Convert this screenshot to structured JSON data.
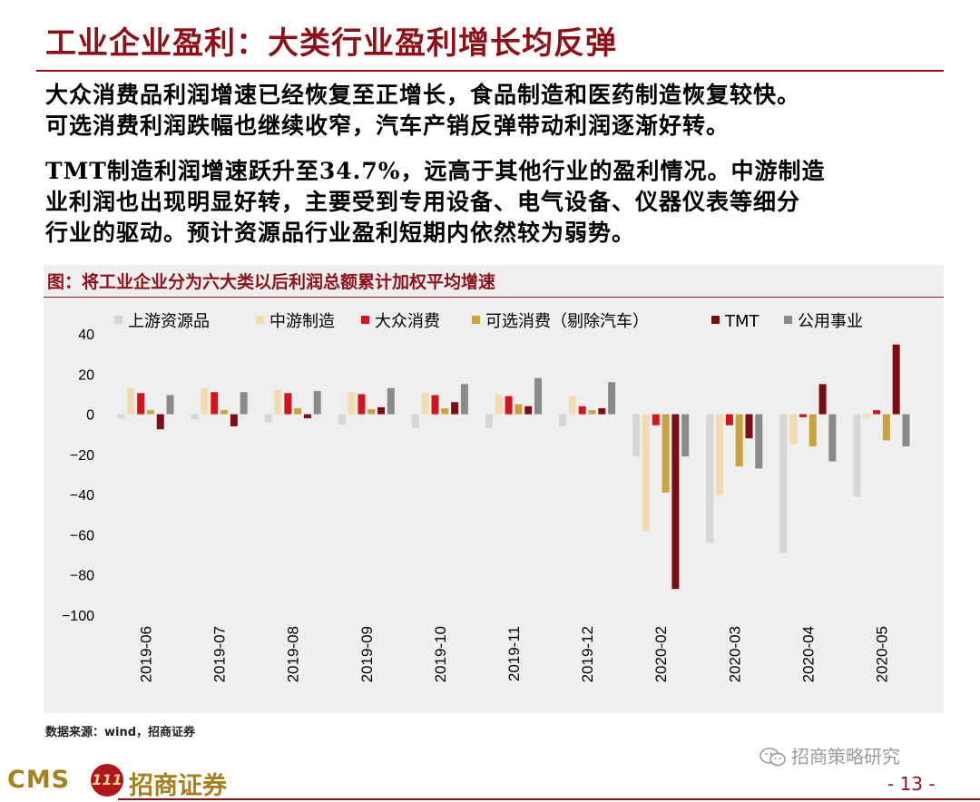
{
  "title": "工业企业盈利：大类行业盈利增长均反弹",
  "paragraphs": {
    "p1": [
      "大众消费品利润增速已经恢复至正增长，食品制造和医药制造恢复较快。",
      "可选消费利润跌幅也继续收窄，汽车产销反弹带动利润逐渐好转。"
    ],
    "p2": [
      "TMT制造利润增速跃升至34.7%，远高于其他行业的盈利情况。中游制造",
      "业利润也出现明显好转，主要受到专用设备、电气设备、仪器仪表等细分",
      "行业的驱动。预计资源品行业盈利短期内依然较为弱势。"
    ]
  },
  "chart_caption": "图：将工业企业分为六大类以后利润总额累计加权平均增速",
  "source": "数据来源：wind，招商证券",
  "watermark": "招商策略研究",
  "logo": {
    "cms": "CMS",
    "badge": "111",
    "name": "招商证券"
  },
  "page_number": "- 13 -",
  "colors": {
    "brand": "#8c1118",
    "gold": "#a6801e"
  },
  "chart_data": {
    "type": "bar",
    "categories": [
      "2019-06",
      "2019-07",
      "2019-08",
      "2019-09",
      "2019-10",
      "2019-11",
      "2019-12",
      "2020-02",
      "2020-03",
      "2020-04",
      "2020-05"
    ],
    "series": [
      {
        "name": "上游资源品",
        "color": "#d6d6d6",
        "values": [
          -2,
          -2.5,
          -4,
          -5,
          -7,
          -7,
          -6,
          -21,
          -64,
          -69,
          -41
        ]
      },
      {
        "name": "中游制造",
        "color": "#f0dcb0",
        "values": [
          13,
          13,
          12,
          11,
          10.5,
          10,
          9,
          -58,
          -40,
          -15,
          -2
        ]
      },
      {
        "name": "大众消费",
        "color": "#d1161f",
        "values": [
          10.5,
          11,
          10.5,
          10,
          9.5,
          9,
          4,
          -5.5,
          -5.5,
          -1.5,
          2
        ]
      },
      {
        "name": "可选消费（剔除汽车）",
        "color": "#c9a33f",
        "values": [
          2,
          2,
          3,
          2.5,
          3,
          5,
          2,
          -39,
          -26,
          -16,
          -13
        ]
      },
      {
        "name": "TMT",
        "color": "#7a0e12",
        "values": [
          -7.5,
          -6,
          -2,
          3.5,
          6,
          4,
          3,
          -87,
          -12,
          15,
          34.7
        ]
      },
      {
        "name": "公用事业",
        "color": "#8a8a8a",
        "values": [
          9.5,
          11,
          11.5,
          13,
          15,
          18,
          16,
          -21,
          -27,
          -23.5,
          -16
        ]
      }
    ],
    "ylim": [
      -100,
      40
    ],
    "yticks": [
      40,
      20,
      0,
      -20,
      -40,
      -60,
      -80,
      -100
    ],
    "legend": "top",
    "grid": false
  }
}
